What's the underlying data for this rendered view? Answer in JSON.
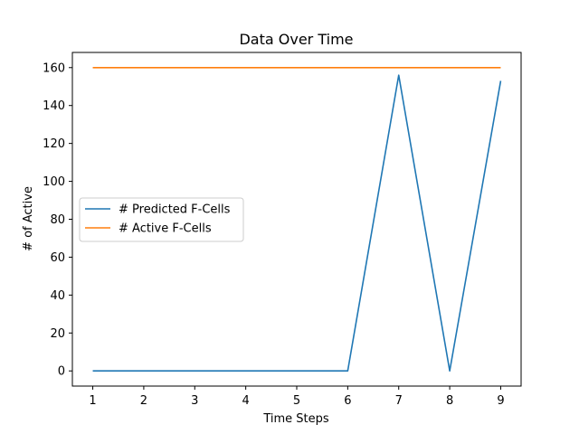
{
  "chart_data": {
    "type": "line",
    "title": "Data Over Time",
    "xlabel": "Time Steps",
    "ylabel": "# of Active",
    "x": [
      1,
      2,
      3,
      4,
      5,
      6,
      7,
      8,
      9
    ],
    "xlim": [
      0.6,
      9.4
    ],
    "ylim": [
      -8,
      168
    ],
    "xticks": [
      1,
      2,
      3,
      4,
      5,
      6,
      7,
      8,
      9
    ],
    "yticks": [
      0,
      20,
      40,
      60,
      80,
      100,
      120,
      140,
      160
    ],
    "grid": false,
    "legend_position": "center-left",
    "series": [
      {
        "name": "# Predicted F-Cells",
        "color": "#1f77b4",
        "values": [
          0,
          0,
          0,
          0,
          0,
          0,
          156,
          0,
          153
        ]
      },
      {
        "name": "# Active F-Cells",
        "color": "#ff7f0e",
        "values": [
          160,
          160,
          160,
          160,
          160,
          160,
          160,
          160,
          160
        ]
      }
    ]
  }
}
